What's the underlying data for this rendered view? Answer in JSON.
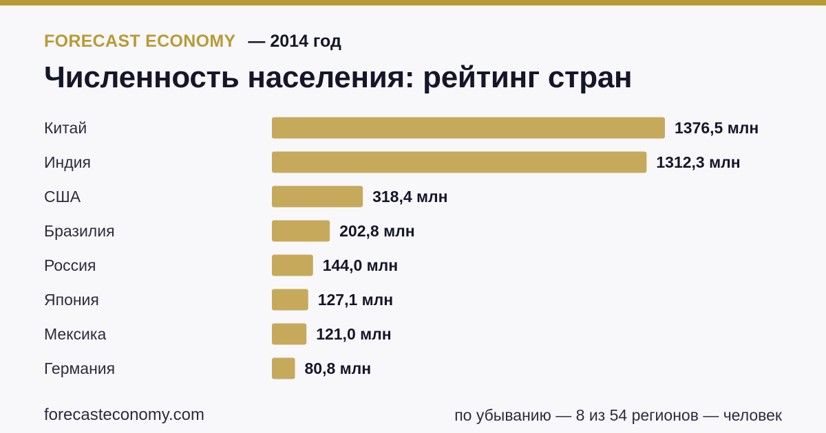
{
  "colors": {
    "accent": "#b99a35",
    "bar": "#c6a95a",
    "text": "#16162a",
    "label": "#2c2c3c",
    "background": "#f8f8fb"
  },
  "header": {
    "brand": "FORECAST ECONOMY",
    "period": "— 2014 год",
    "title": "Численность населения: рейтинг стран"
  },
  "footer": {
    "site": "forecasteconomy.com",
    "note": "по убыванию — 8 из 54 регионов — человек"
  },
  "chart_data": {
    "type": "bar",
    "orientation": "horizontal",
    "categories": [
      "Китай",
      "Индия",
      "США",
      "Бразилия",
      "Россия",
      "Япония",
      "Мексика",
      "Германия"
    ],
    "values": [
      1376.5,
      1312.3,
      318.4,
      202.8,
      144.0,
      127.1,
      121.0,
      80.8
    ],
    "value_labels": [
      "1376,5 млн",
      "1312,3 млн",
      "318,4 млн",
      "202,8 млн",
      "144,0 млн",
      "127,1 млн",
      "121,0 млн",
      "80,8 млн"
    ],
    "unit": "млн",
    "xlim": [
      0,
      1376.5
    ],
    "grid": false,
    "legend": "none"
  }
}
